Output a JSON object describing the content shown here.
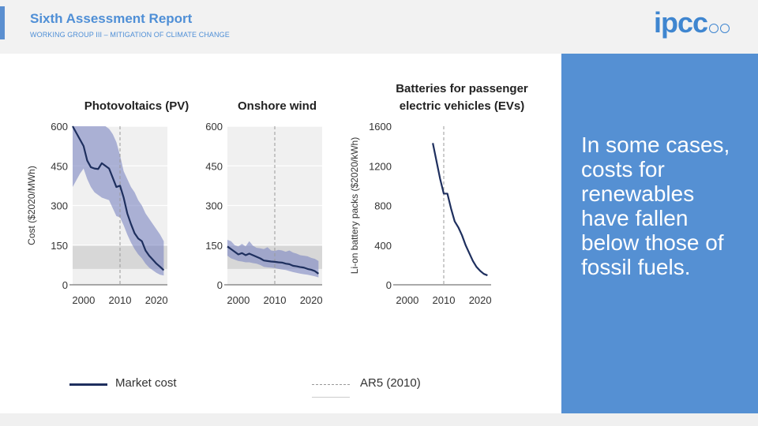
{
  "header": {
    "title": "Sixth Assessment Report",
    "subtitle": "WORKING GROUP III – MITIGATION OF CLIMATE CHANGE",
    "logo": "ipcc"
  },
  "panel": {
    "text": "In some cases, costs for renewables have fallen below those of fossil fuels."
  },
  "legend": {
    "market_cost": "Market cost",
    "ar5": "AR5 (2010)"
  },
  "colors": {
    "line": "#1e2f5e",
    "band": "#7c86c2",
    "fossil_band": "#d7d7d7",
    "plot_bg": "#f0f0f0",
    "accent": "#5590d3"
  },
  "chart_data": [
    {
      "type": "line",
      "title": "Photovoltaics (PV)",
      "ylabel": "Cost ($2020/MWh)",
      "xlabel": "",
      "xlim": [
        1997,
        2023
      ],
      "ylim": [
        0,
        600
      ],
      "xticks": [
        "2000",
        "2010",
        "2020"
      ],
      "yticks": [
        "0",
        "150",
        "300",
        "450",
        "600"
      ],
      "ar5_year": 2010,
      "fossil_range": [
        60,
        150
      ],
      "series": [
        {
          "name": "Market cost",
          "x": [
            1997,
            1998,
            1999,
            2000,
            2001,
            2002,
            2003,
            2004,
            2005,
            2006,
            2007,
            2008,
            2009,
            2010,
            2011,
            2012,
            2013,
            2014,
            2015,
            2016,
            2017,
            2018,
            2019,
            2020,
            2021,
            2022
          ],
          "values": [
            600,
            575,
            550,
            525,
            470,
            445,
            440,
            438,
            460,
            450,
            440,
            405,
            370,
            375,
            330,
            270,
            230,
            195,
            175,
            165,
            130,
            110,
            95,
            80,
            68,
            55
          ]
        }
      ],
      "band_upper": [
        600,
        600,
        600,
        600,
        600,
        600,
        600,
        600,
        600,
        600,
        590,
        570,
        540,
        490,
        430,
        400,
        370,
        350,
        320,
        300,
        270,
        250,
        230,
        210,
        190,
        165
      ],
      "band_lower": [
        370,
        395,
        420,
        440,
        400,
        370,
        350,
        340,
        330,
        325,
        320,
        290,
        260,
        255,
        225,
        190,
        160,
        135,
        115,
        100,
        80,
        65,
        55,
        45,
        38,
        35
      ]
    },
    {
      "type": "line",
      "title": "Onshore wind",
      "ylabel": "",
      "xlabel": "",
      "xlim": [
        1997,
        2023
      ],
      "ylim": [
        0,
        600
      ],
      "xticks": [
        "2000",
        "2010",
        "2020"
      ],
      "yticks": [
        "0",
        "150",
        "300",
        "450",
        "600"
      ],
      "ar5_year": 2010,
      "fossil_range": [
        60,
        150
      ],
      "series": [
        {
          "name": "Market cost",
          "x": [
            1997,
            1998,
            1999,
            2000,
            2001,
            2002,
            2003,
            2004,
            2005,
            2006,
            2007,
            2008,
            2009,
            2010,
            2011,
            2012,
            2013,
            2014,
            2015,
            2016,
            2017,
            2018,
            2019,
            2020,
            2021,
            2022
          ],
          "values": [
            145,
            135,
            125,
            115,
            120,
            112,
            118,
            112,
            106,
            100,
            92,
            90,
            88,
            87,
            85,
            84,
            80,
            78,
            72,
            70,
            67,
            65,
            60,
            57,
            52,
            42
          ]
        }
      ],
      "band_upper": [
        170,
        165,
        150,
        145,
        155,
        145,
        165,
        148,
        140,
        138,
        135,
        142,
        130,
        128,
        132,
        130,
        125,
        130,
        122,
        118,
        112,
        110,
        108,
        102,
        98,
        90
      ],
      "band_lower": [
        110,
        100,
        95,
        90,
        88,
        85,
        85,
        82,
        80,
        75,
        68,
        66,
        65,
        63,
        60,
        58,
        56,
        52,
        48,
        45,
        42,
        40,
        38,
        35,
        32,
        28
      ]
    },
    {
      "type": "line",
      "title": "Batteries for passenger electric vehicles (EVs)",
      "ylabel": "Li-on battery packs ($2020/kWh)",
      "xlabel": "",
      "xlim": [
        1997,
        2023
      ],
      "ylim": [
        0,
        1600
      ],
      "xticks": [
        "2000",
        "2010",
        "2020"
      ],
      "yticks": [
        "0",
        "400",
        "800",
        "1200",
        "1600"
      ],
      "ar5_year": 2010,
      "series": [
        {
          "name": "Market cost",
          "x": [
            2007,
            2008,
            2009,
            2010,
            2011,
            2012,
            2013,
            2014,
            2015,
            2016,
            2017,
            2018,
            2019,
            2020,
            2021,
            2022
          ],
          "values": [
            1430,
            1250,
            1070,
            920,
            920,
            770,
            640,
            580,
            500,
            400,
            320,
            240,
            180,
            140,
            110,
            95
          ]
        }
      ]
    }
  ]
}
